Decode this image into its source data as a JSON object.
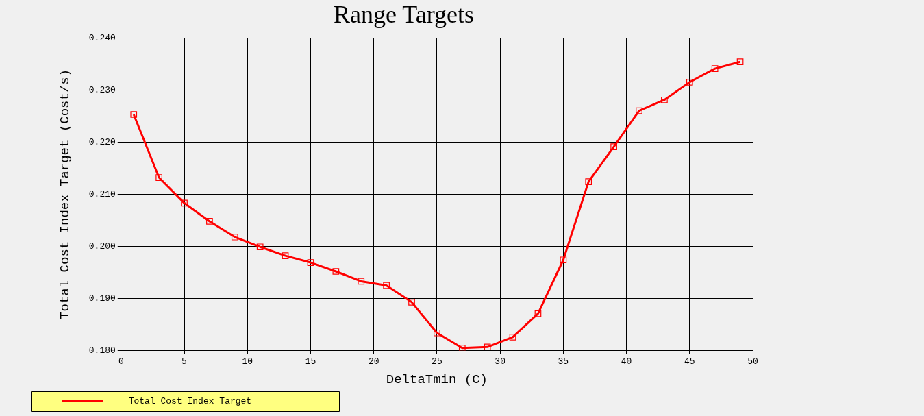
{
  "chart_data": {
    "type": "line",
    "title": "Range Targets",
    "xlabel": "DeltaTmin (C)",
    "ylabel": "Total Cost Index Target (Cost/s)",
    "x": [
      1,
      3,
      5,
      7,
      9,
      11,
      13,
      15,
      17,
      19,
      21,
      23,
      25,
      27,
      29,
      31,
      33,
      35,
      37,
      39,
      41,
      43,
      45,
      47,
      49
    ],
    "series": [
      {
        "name": "Total Cost Index Target",
        "color": "#ff0000",
        "values": [
          0.2253,
          0.2132,
          0.2083,
          0.2048,
          0.2018,
          0.1999,
          0.1982,
          0.1969,
          0.1952,
          0.1933,
          0.1925,
          0.1893,
          0.1834,
          0.1805,
          0.1807,
          0.1826,
          0.1871,
          0.1974,
          0.2124,
          0.2191,
          0.226,
          0.2281,
          0.2315,
          0.2341,
          0.2354
        ]
      }
    ],
    "xlim": [
      0,
      50
    ],
    "xticks": [
      0,
      5,
      10,
      15,
      20,
      25,
      30,
      35,
      40,
      45,
      50
    ],
    "ylim": [
      0.18,
      0.24
    ],
    "yticks": [
      {
        "value": 0.18,
        "label": "0.180"
      },
      {
        "value": 0.19,
        "label": "0.190"
      },
      {
        "value": 0.2,
        "label": "0.200"
      },
      {
        "value": 0.21,
        "label": "0.210"
      },
      {
        "value": 0.22,
        "label": "0.220"
      },
      {
        "value": 0.23,
        "label": "0.230"
      },
      {
        "value": 0.24,
        "label": "0.240"
      }
    ],
    "grid": true,
    "legend": "bottom left",
    "marker": "square",
    "line_style": "solid"
  }
}
